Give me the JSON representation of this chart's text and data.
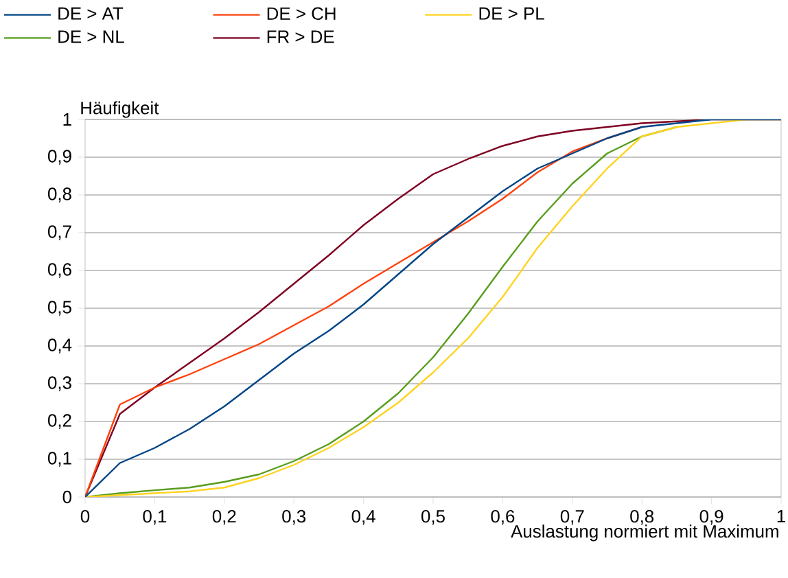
{
  "chart_data": {
    "type": "line",
    "xlabel": "Auslastung normiert mit Maximum",
    "ylabel": "Häufigkeit",
    "x": [
      0,
      0.05,
      0.1,
      0.15,
      0.2,
      0.25,
      0.3,
      0.35,
      0.4,
      0.45,
      0.5,
      0.55,
      0.6,
      0.65,
      0.7,
      0.75,
      0.8,
      0.85,
      0.9,
      0.95,
      1
    ],
    "series": [
      {
        "name": "DE > AT",
        "color": "#004586",
        "values": [
          0,
          0.09,
          0.13,
          0.18,
          0.24,
          0.31,
          0.38,
          0.44,
          0.51,
          0.59,
          0.67,
          0.74,
          0.81,
          0.87,
          0.91,
          0.95,
          0.98,
          0.99,
          1,
          1,
          1
        ]
      },
      {
        "name": "DE > CH",
        "color": "#ff420e",
        "values": [
          0,
          0.245,
          0.29,
          0.325,
          0.365,
          0.405,
          0.455,
          0.505,
          0.565,
          0.62,
          0.675,
          0.73,
          0.79,
          0.86,
          0.915,
          0.95,
          0.98,
          null,
          null,
          null,
          null
        ]
      },
      {
        "name": "DE > PL",
        "color": "#ffd320",
        "values": [
          0,
          0.005,
          0.01,
          0.015,
          0.025,
          0.05,
          0.085,
          0.13,
          0.185,
          0.25,
          0.33,
          0.42,
          0.53,
          0.66,
          0.77,
          0.87,
          0.955,
          0.98,
          0.99,
          1,
          1
        ]
      },
      {
        "name": "DE > NL",
        "color": "#579d1c",
        "values": [
          0,
          0.01,
          0.018,
          0.025,
          0.04,
          0.06,
          0.095,
          0.14,
          0.2,
          0.275,
          0.37,
          0.485,
          0.61,
          0.73,
          0.83,
          0.91,
          0.955,
          0.98,
          null,
          null,
          null
        ]
      },
      {
        "name": "FR > DE",
        "color": "#7e0021",
        "values": [
          0,
          0.22,
          0.29,
          0.355,
          0.42,
          0.49,
          0.565,
          0.64,
          0.72,
          0.79,
          0.855,
          0.895,
          0.93,
          0.955,
          0.97,
          0.98,
          0.99,
          0.995,
          1,
          1,
          1
        ]
      }
    ],
    "xlim": [
      0,
      1
    ],
    "ylim": [
      0,
      1
    ],
    "xticks": [
      0,
      {
        "value": 0.1,
        "label": "0,1"
      },
      {
        "value": 0.2,
        "label": "0,2"
      },
      {
        "value": 0.3,
        "label": "0,3"
      },
      {
        "value": 0.4,
        "label": "0,4"
      },
      {
        "value": 0.5,
        "label": "0,5"
      },
      {
        "value": 0.6,
        "label": "0,6"
      },
      {
        "value": 0.7,
        "label": "0,7"
      },
      {
        "value": 0.8,
        "label": "0,8"
      },
      {
        "value": 0.9,
        "label": "0,9"
      },
      1
    ],
    "yticks": [
      0,
      {
        "value": 0.1,
        "label": "0,1"
      },
      {
        "value": 0.2,
        "label": "0,2"
      },
      {
        "value": 0.3,
        "label": "0,3"
      },
      {
        "value": 0.4,
        "label": "0,4"
      },
      {
        "value": 0.5,
        "label": "0,5"
      },
      {
        "value": 0.6,
        "label": "0,6"
      },
      {
        "value": 0.7,
        "label": "0,7"
      },
      {
        "value": 0.8,
        "label": "0,8"
      },
      {
        "value": 0.9,
        "label": "0,9"
      },
      1
    ],
    "grid": "y",
    "legend": "top"
  }
}
